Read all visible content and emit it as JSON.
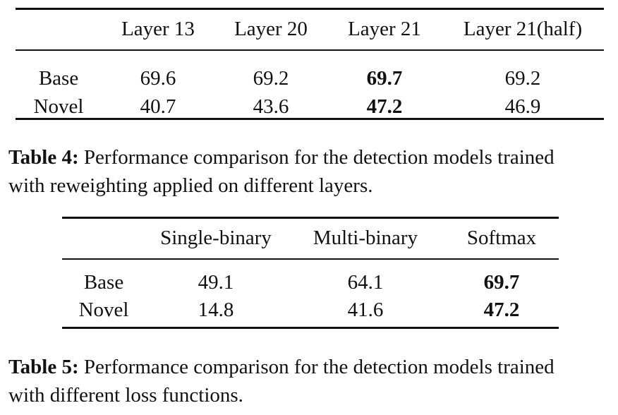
{
  "table4": {
    "columns": [
      "",
      "Layer 13",
      "Layer 20",
      "Layer 21",
      "Layer 21(half)"
    ],
    "rows": [
      {
        "label": "Base",
        "values": [
          "69.6",
          "69.2",
          "69.7",
          "69.2"
        ],
        "bold_index": 2
      },
      {
        "label": "Novel",
        "values": [
          "40.7",
          "43.6",
          "47.2",
          "46.9"
        ],
        "bold_index": 2
      }
    ],
    "caption_label": "Table 4:",
    "caption_text": " Performance comparison for the detection models trained",
    "caption_text2": "with reweighting applied on different layers."
  },
  "table5": {
    "columns": [
      "",
      "Single-binary",
      "Multi-binary",
      "Softmax"
    ],
    "rows": [
      {
        "label": "Base",
        "values": [
          "49.1",
          "64.1",
          "69.7"
        ],
        "bold_index": 2
      },
      {
        "label": "Novel",
        "values": [
          "14.8",
          "41.6",
          "47.2"
        ],
        "bold_index": 2
      }
    ],
    "caption_label": "Table 5:",
    "caption_text": " Performance comparison for the detection models trained",
    "caption_text2": "with different loss functions."
  }
}
